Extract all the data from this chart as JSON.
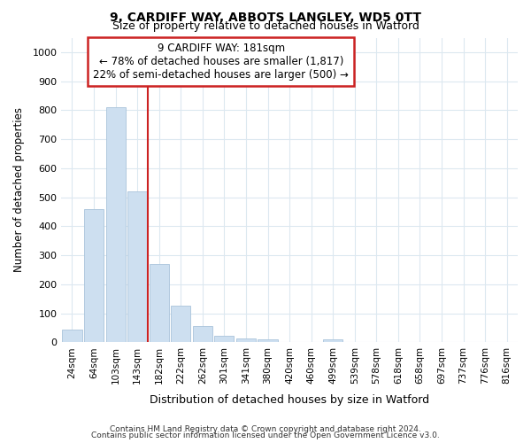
{
  "title1": "9, CARDIFF WAY, ABBOTS LANGLEY, WD5 0TT",
  "title2": "Size of property relative to detached houses in Watford",
  "xlabel": "Distribution of detached houses by size in Watford",
  "ylabel": "Number of detached properties",
  "categories": [
    "24sqm",
    "64sqm",
    "103sqm",
    "143sqm",
    "182sqm",
    "222sqm",
    "262sqm",
    "301sqm",
    "341sqm",
    "380sqm",
    "420sqm",
    "460sqm",
    "499sqm",
    "539sqm",
    "578sqm",
    "618sqm",
    "658sqm",
    "697sqm",
    "737sqm",
    "776sqm",
    "816sqm"
  ],
  "values": [
    45,
    460,
    810,
    520,
    270,
    125,
    55,
    22,
    12,
    10,
    0,
    0,
    10,
    0,
    0,
    0,
    0,
    0,
    0,
    0,
    0
  ],
  "bar_color": "#cddff0",
  "bar_edge_color": "#aac4db",
  "vline_color": "#cc2222",
  "vline_x_index": 4,
  "annotation_line1": "9 CARDIFF WAY: 181sqm",
  "annotation_line2": "← 78% of detached houses are smaller (1,817)",
  "annotation_line3": "22% of semi-detached houses are larger (500) →",
  "annotation_box_color": "#ffffff",
  "annotation_box_edge": "#cc2222",
  "ylim": [
    0,
    1050
  ],
  "yticks": [
    0,
    100,
    200,
    300,
    400,
    500,
    600,
    700,
    800,
    900,
    1000
  ],
  "footer1": "Contains HM Land Registry data © Crown copyright and database right 2024.",
  "footer2": "Contains public sector information licensed under the Open Government Licence v3.0.",
  "bg_color": "#ffffff",
  "plot_bg_color": "#ffffff",
  "grid_color": "#dce8f0"
}
